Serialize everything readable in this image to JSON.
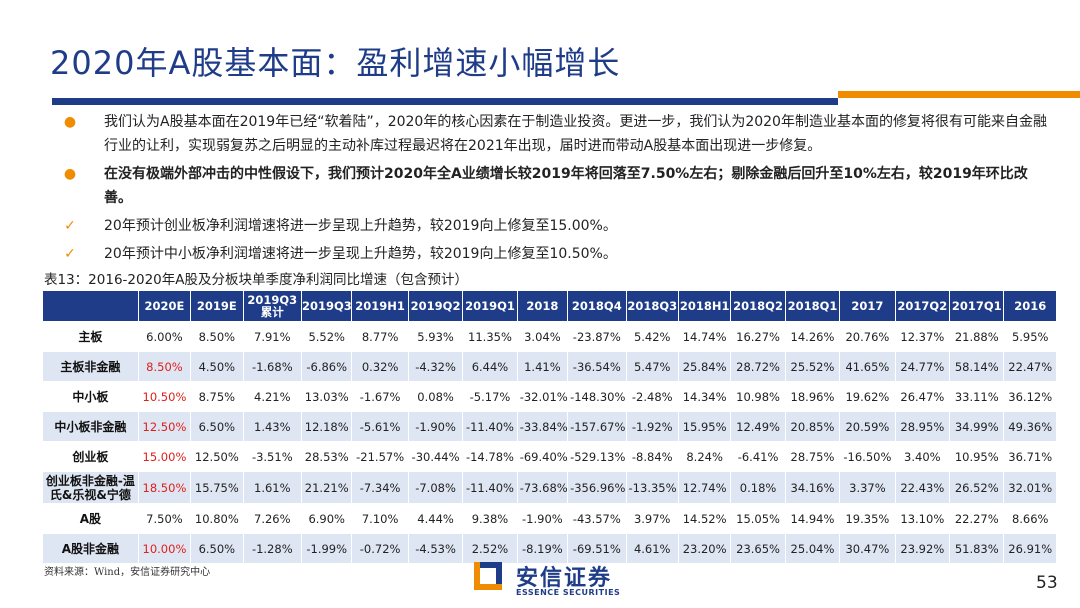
{
  "title": "2020年A股基本面：盈利增速小幅增长",
  "bullets": [
    {
      "type": "dot",
      "bold": false,
      "text": "我们认为A股基本面在2019年已经“软着陆”，2020年的核心因素在于制造业投资。更进一步，我们认为2020年制造业基本面的修复将很有可能来自金融行业的让利，实现弱复苏之后明显的主动补库过程最迟将在2021年出现，届时进而带动A股基本面出现进一步修复。"
    },
    {
      "type": "dot",
      "bold": true,
      "text": "在没有极端外部冲击的中性假设下，我们预计2020年全A业绩增长较2019年将回落至7.50%左右；剔除金融后回升至10%左右，较2019年环比改善。"
    },
    {
      "type": "check",
      "bold": false,
      "text": "20年预计创业板净利润增速将进一步呈现上升趋势，较2019向上修复至15.00%。"
    },
    {
      "type": "check",
      "bold": false,
      "text": "20年预计中小板净利润增速将进一步呈现上升趋势，较2019向上修复至10.50%。"
    }
  ],
  "marks": {
    "dot": "●",
    "check": "✓"
  },
  "caption": "表13：2016-2020年A股及分板块单季度净利润同比增速（包含预计）",
  "table": {
    "headers": [
      "",
      "2020E",
      "2019E",
      "2019Q3累计",
      "2019Q3",
      "2019H1",
      "2019Q2",
      "2019Q1",
      "2018",
      "2018Q4",
      "2018Q3",
      "2018H1",
      "2018Q2",
      "2018Q1",
      "2017",
      "2017Q2",
      "2017Q1",
      "2016"
    ],
    "rows": [
      {
        "name": "主板",
        "cells": [
          "6.00%",
          "8.50%",
          "7.91%",
          "5.52%",
          "8.77%",
          "5.93%",
          "11.35%",
          "3.04%",
          "-23.87%",
          "5.42%",
          "14.74%",
          "16.27%",
          "14.26%",
          "20.76%",
          "12.37%",
          "21.88%",
          "5.95%"
        ]
      },
      {
        "name": "主板非金融",
        "cells": [
          "8.50%",
          "4.50%",
          "-1.68%",
          "-6.86%",
          "0.32%",
          "-4.32%",
          "6.44%",
          "1.41%",
          "-36.54%",
          "5.47%",
          "25.84%",
          "28.72%",
          "25.52%",
          "41.65%",
          "24.77%",
          "58.14%",
          "22.47%"
        ]
      },
      {
        "name": "中小板",
        "cells": [
          "10.50%",
          "8.75%",
          "4.21%",
          "13.03%",
          "-1.67%",
          "0.08%",
          "-5.17%",
          "-32.01%",
          "-148.30%",
          "-2.48%",
          "14.34%",
          "10.98%",
          "18.96%",
          "19.62%",
          "26.47%",
          "33.11%",
          "36.12%"
        ]
      },
      {
        "name": "中小板非金融",
        "cells": [
          "12.50%",
          "6.50%",
          "1.43%",
          "12.18%",
          "-5.61%",
          "-1.90%",
          "-11.40%",
          "-33.84%",
          "-157.67%",
          "-1.92%",
          "15.95%",
          "12.49%",
          "20.85%",
          "20.59%",
          "28.95%",
          "34.99%",
          "49.36%"
        ]
      },
      {
        "name": "创业板",
        "cells": [
          "15.00%",
          "12.50%",
          "-3.51%",
          "28.53%",
          "-21.57%",
          "-30.44%",
          "-14.78%",
          "-69.40%",
          "-529.13%",
          "-8.84%",
          "8.24%",
          "-6.41%",
          "28.75%",
          "-16.50%",
          "3.40%",
          "10.95%",
          "36.71%"
        ]
      },
      {
        "name": "创业板非金融-温氏&乐视&宁德",
        "cells": [
          "18.50%",
          "15.75%",
          "1.61%",
          "21.21%",
          "-7.34%",
          "-7.08%",
          "-11.40%",
          "-73.68%",
          "-356.96%",
          "-13.35%",
          "12.74%",
          "0.18%",
          "34.16%",
          "3.37%",
          "22.43%",
          "26.52%",
          "32.01%"
        ]
      },
      {
        "name": "A股",
        "cells": [
          "7.50%",
          "10.80%",
          "7.26%",
          "6.90%",
          "7.10%",
          "4.44%",
          "9.38%",
          "-1.90%",
          "-43.57%",
          "3.97%",
          "14.52%",
          "15.05%",
          "14.94%",
          "19.35%",
          "13.10%",
          "22.27%",
          "8.66%"
        ]
      },
      {
        "name": "A股非金融",
        "cells": [
          "10.00%",
          "6.50%",
          "-1.28%",
          "-1.99%",
          "-0.72%",
          "-4.53%",
          "2.52%",
          "-8.19%",
          "-69.51%",
          "4.61%",
          "23.20%",
          "23.65%",
          "25.04%",
          "30.47%",
          "23.92%",
          "51.83%",
          "26.91%"
        ]
      }
    ],
    "red_rows": [
      1,
      2,
      3,
      4,
      5,
      7
    ]
  },
  "source": "资料来源：Wind，安信证券研究中心",
  "logo": {
    "cn": "安信证券",
    "en": "ESSENCE SECURITIES"
  },
  "page_number": "53",
  "colors": {
    "brand_blue": "#1f3c88",
    "accent_orange": "#f08c00",
    "highlight_red": "#e0201c",
    "row_alt": "#dfe6f3"
  }
}
